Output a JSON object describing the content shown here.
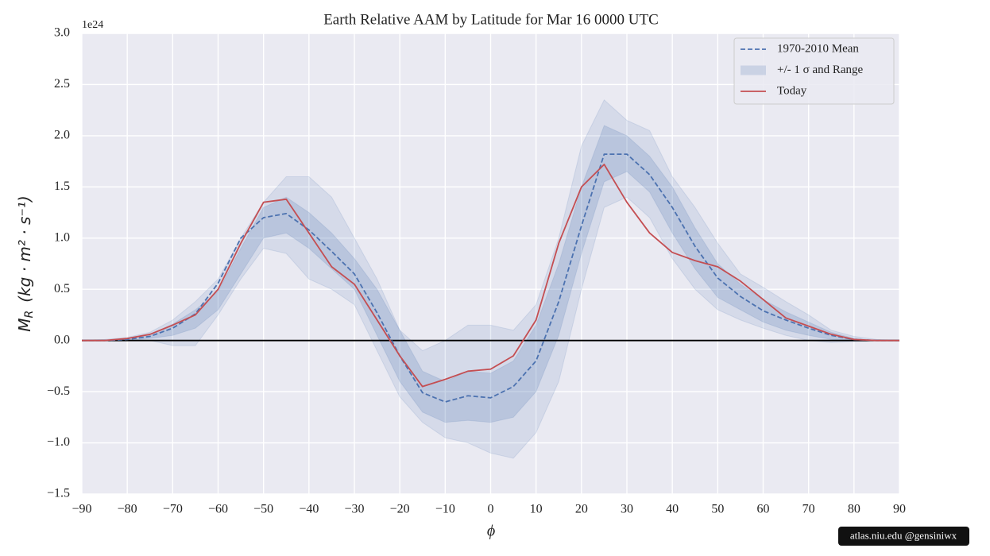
{
  "chart_data": {
    "type": "line",
    "title": "Earth Relative AAM by Latitude for Mar 16 0000 UTC",
    "y_offset_label": "1e24",
    "xlabel": "ϕ",
    "ylabel": {
      "symbol": "M",
      "subscript": "R",
      "units": "(kg · m² · s⁻¹)"
    },
    "x": [
      -90,
      -85,
      -80,
      -75,
      -70,
      -65,
      -60,
      -55,
      -50,
      -45,
      -40,
      -35,
      -30,
      -25,
      -20,
      -15,
      -10,
      -5,
      0,
      5,
      10,
      15,
      20,
      25,
      30,
      35,
      40,
      45,
      50,
      55,
      60,
      65,
      70,
      75,
      80,
      85,
      90
    ],
    "series": [
      {
        "name": "1970-2010 Mean",
        "color": "#4c72b0",
        "dash": true,
        "values": [
          0,
          0,
          0.01,
          0.04,
          0.12,
          0.26,
          0.56,
          1.0,
          1.2,
          1.24,
          1.08,
          0.87,
          0.65,
          0.27,
          -0.15,
          -0.51,
          -0.6,
          -0.54,
          -0.56,
          -0.45,
          -0.2,
          0.38,
          1.12,
          1.82,
          1.82,
          1.62,
          1.3,
          0.92,
          0.61,
          0.43,
          0.29,
          0.2,
          0.12,
          0.05,
          0.01,
          0,
          0
        ]
      },
      {
        "name": "Today",
        "color": "#c44e52",
        "dash": false,
        "values": [
          0,
          0,
          0.02,
          0.06,
          0.15,
          0.25,
          0.5,
          0.95,
          1.35,
          1.38,
          1.05,
          0.72,
          0.55,
          0.2,
          -0.15,
          -0.45,
          -0.38,
          -0.3,
          -0.28,
          -0.15,
          0.2,
          0.95,
          1.5,
          1.72,
          1.35,
          1.05,
          0.86,
          0.78,
          0.72,
          0.58,
          0.4,
          0.22,
          0.14,
          0.06,
          0.01,
          0,
          0
        ]
      }
    ],
    "band": {
      "name": "+/- 1 σ and Range",
      "color": "#4c72b0",
      "range_lower": [
        0,
        0,
        0,
        0,
        -0.05,
        -0.05,
        0.25,
        0.6,
        0.9,
        0.85,
        0.6,
        0.5,
        0.35,
        -0.1,
        -0.55,
        -0.8,
        -0.95,
        -1.0,
        -1.1,
        -1.15,
        -0.9,
        -0.4,
        0.5,
        1.3,
        1.4,
        1.2,
        0.8,
        0.5,
        0.3,
        0.2,
        0.12,
        0.05,
        0,
        -0.02,
        -0.01,
        0,
        0
      ],
      "range_upper": [
        0,
        0.01,
        0.03,
        0.08,
        0.2,
        0.38,
        0.6,
        1.0,
        1.35,
        1.6,
        1.6,
        1.4,
        1.0,
        0.6,
        0.1,
        -0.1,
        0,
        0.15,
        0.15,
        0.1,
        0.35,
        1.0,
        1.9,
        2.35,
        2.15,
        2.05,
        1.6,
        1.3,
        0.95,
        0.65,
        0.52,
        0.38,
        0.25,
        0.1,
        0.04,
        0.01,
        0
      ],
      "sigma_lower": [
        0,
        0,
        0,
        0.02,
        0.05,
        0.12,
        0.3,
        0.65,
        1.0,
        1.05,
        0.9,
        0.7,
        0.5,
        0.05,
        -0.4,
        -0.7,
        -0.8,
        -0.78,
        -0.8,
        -0.75,
        -0.5,
        0.05,
        0.85,
        1.55,
        1.65,
        1.45,
        1.05,
        0.7,
        0.42,
        0.3,
        0.18,
        0.1,
        0.05,
        0.01,
        0,
        0,
        0
      ],
      "sigma_upper": [
        0,
        0,
        0.02,
        0.06,
        0.16,
        0.3,
        0.48,
        0.9,
        1.3,
        1.4,
        1.25,
        1.05,
        0.8,
        0.5,
        0.1,
        -0.3,
        -0.4,
        -0.3,
        -0.32,
        -0.2,
        0.15,
        0.75,
        1.5,
        2.1,
        2.0,
        1.8,
        1.5,
        1.1,
        0.75,
        0.55,
        0.4,
        0.28,
        0.18,
        0.08,
        0.02,
        0,
        0
      ]
    },
    "xlim": [
      -90,
      90
    ],
    "ylim": [
      -1.5,
      3.0
    ],
    "xticks": [
      {
        "value": -90,
        "label": "−90"
      },
      {
        "value": -80,
        "label": "−80"
      },
      {
        "value": -70,
        "label": "−70"
      },
      {
        "value": -60,
        "label": "−60"
      },
      {
        "value": -50,
        "label": "−50"
      },
      {
        "value": -40,
        "label": "−40"
      },
      {
        "value": -30,
        "label": "−30"
      },
      {
        "value": -20,
        "label": "−20"
      },
      {
        "value": -10,
        "label": "−10"
      },
      0,
      10,
      20,
      30,
      40,
      50,
      60,
      70,
      80,
      90
    ],
    "yticks": [
      {
        "value": -1.5,
        "label": "−1.5"
      },
      {
        "value": -1.0,
        "label": "−1.0"
      },
      {
        "value": -0.5,
        "label": "−0.5"
      },
      {
        "value": 0,
        "label": "0.0"
      },
      0.5,
      {
        "value": 1.0,
        "label": "1.0"
      },
      1.5,
      {
        "value": 2.0,
        "label": "2.0"
      },
      2.5,
      {
        "value": 3.0,
        "label": "3.0"
      }
    ],
    "zero_line": true,
    "grid": true,
    "legend": "upper right",
    "watermark": "atlas.niu.edu  @gensiniwx"
  }
}
